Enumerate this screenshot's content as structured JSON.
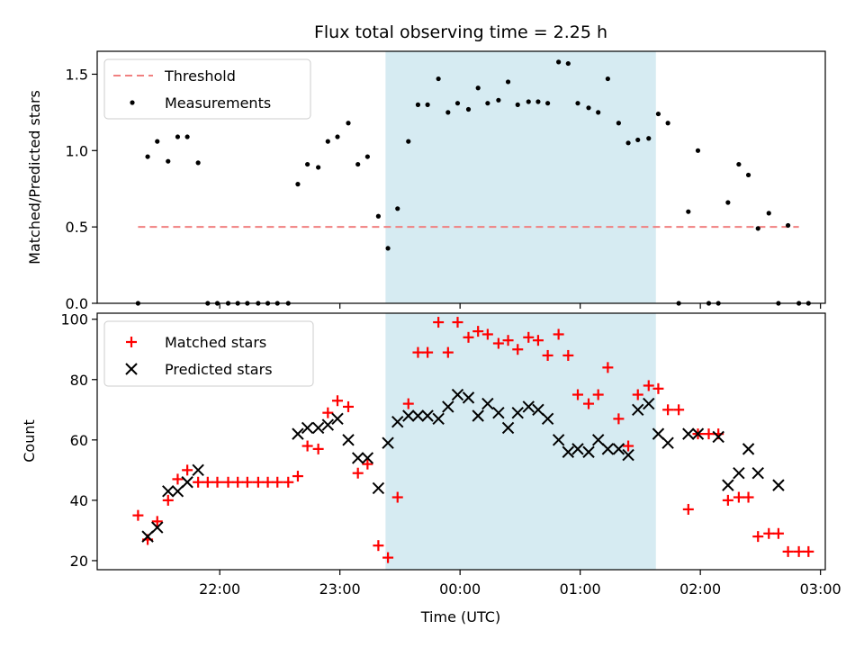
{
  "chart_data": [
    {
      "type": "scatter",
      "title": "Flux total observing time = 2.25 h",
      "xlabel": "",
      "ylabel": "Matched/Predicted stars",
      "ylim": [
        0,
        1.65
      ],
      "yticks": [
        "0.0",
        "0.5",
        "1.0",
        "1.5"
      ],
      "legend": {
        "position": "top-left",
        "entries": [
          "Threshold",
          "Measurements"
        ]
      },
      "threshold": {
        "value": 0.5,
        "x_start_h": 21.32,
        "x_end_h": 26.82,
        "color": "#f08080",
        "style": "dashed"
      },
      "shaded_region": {
        "x_start_h": 23.38,
        "x_end_h": 25.63,
        "color": "#add8e6"
      },
      "x_unit": "hours UTC (24+ = next day)",
      "series": [
        {
          "name": "Measurements",
          "color": "#000000",
          "points": [
            [
              21.32,
              0.0
            ],
            [
              21.4,
              0.96
            ],
            [
              21.48,
              1.06
            ],
            [
              21.57,
              0.93
            ],
            [
              21.65,
              1.09
            ],
            [
              21.73,
              1.09
            ],
            [
              21.82,
              0.92
            ],
            [
              21.9,
              0.0
            ],
            [
              21.98,
              0.0
            ],
            [
              22.07,
              0.0
            ],
            [
              22.15,
              0.0
            ],
            [
              22.23,
              0.0
            ],
            [
              22.32,
              0.0
            ],
            [
              22.4,
              0.0
            ],
            [
              22.48,
              0.0
            ],
            [
              22.57,
              0.0
            ],
            [
              22.65,
              0.78
            ],
            [
              22.73,
              0.91
            ],
            [
              22.82,
              0.89
            ],
            [
              22.9,
              1.06
            ],
            [
              22.98,
              1.09
            ],
            [
              23.07,
              1.18
            ],
            [
              23.15,
              0.91
            ],
            [
              23.23,
              0.96
            ],
            [
              23.32,
              0.57
            ],
            [
              23.4,
              0.36
            ],
            [
              23.48,
              0.62
            ],
            [
              23.57,
              1.06
            ],
            [
              23.65,
              1.3
            ],
            [
              23.73,
              1.3
            ],
            [
              23.82,
              1.47
            ],
            [
              23.9,
              1.25
            ],
            [
              23.98,
              1.31
            ],
            [
              24.07,
              1.27
            ],
            [
              24.15,
              1.41
            ],
            [
              24.23,
              1.31
            ],
            [
              24.32,
              1.33
            ],
            [
              24.4,
              1.45
            ],
            [
              24.48,
              1.3
            ],
            [
              24.57,
              1.32
            ],
            [
              24.65,
              1.32
            ],
            [
              24.73,
              1.31
            ],
            [
              24.82,
              1.58
            ],
            [
              24.9,
              1.57
            ],
            [
              24.98,
              1.31
            ],
            [
              25.07,
              1.28
            ],
            [
              25.15,
              1.25
            ],
            [
              25.23,
              1.47
            ],
            [
              25.32,
              1.18
            ],
            [
              25.4,
              1.05
            ],
            [
              25.48,
              1.07
            ],
            [
              25.57,
              1.08
            ],
            [
              25.65,
              1.24
            ],
            [
              25.73,
              1.18
            ],
            [
              25.82,
              0.0
            ],
            [
              25.9,
              0.6
            ],
            [
              25.98,
              1.0
            ],
            [
              26.07,
              0.0
            ],
            [
              26.15,
              0.0
            ],
            [
              26.23,
              0.66
            ],
            [
              26.32,
              0.91
            ],
            [
              26.4,
              0.84
            ],
            [
              26.48,
              0.49
            ],
            [
              26.57,
              0.59
            ],
            [
              26.65,
              0.0
            ],
            [
              26.73,
              0.51
            ],
            [
              26.82,
              0.0
            ],
            [
              26.9,
              0.0
            ]
          ]
        }
      ]
    },
    {
      "type": "scatter",
      "title": "",
      "xlabel": "Time (UTC)",
      "ylabel": "Count",
      "ylim": [
        17,
        102
      ],
      "yticks": [
        "20",
        "40",
        "60",
        "80",
        "100"
      ],
      "xticks": [
        "22:00",
        "23:00",
        "00:00",
        "01:00",
        "02:00",
        "03:00"
      ],
      "legend": {
        "position": "top-left",
        "entries": [
          "Matched stars",
          "Predicted stars"
        ]
      },
      "shaded_region": {
        "x_start_h": 23.38,
        "x_end_h": 25.63,
        "color": "#add8e6"
      },
      "series": [
        {
          "name": "Matched stars",
          "marker": "plus",
          "color": "#ff0000",
          "points": [
            [
              21.32,
              35
            ],
            [
              21.4,
              27
            ],
            [
              21.48,
              33
            ],
            [
              21.57,
              40
            ],
            [
              21.65,
              47
            ],
            [
              21.73,
              50
            ],
            [
              21.82,
              46
            ],
            [
              21.9,
              46
            ],
            [
              21.98,
              46
            ],
            [
              22.07,
              46
            ],
            [
              22.15,
              46
            ],
            [
              22.23,
              46
            ],
            [
              22.32,
              46
            ],
            [
              22.4,
              46
            ],
            [
              22.48,
              46
            ],
            [
              22.57,
              46
            ],
            [
              22.65,
              48
            ],
            [
              22.73,
              58
            ],
            [
              22.82,
              57
            ],
            [
              22.9,
              69
            ],
            [
              22.98,
              73
            ],
            [
              23.07,
              71
            ],
            [
              23.15,
              49
            ],
            [
              23.23,
              52
            ],
            [
              23.32,
              25
            ],
            [
              23.4,
              21
            ],
            [
              23.48,
              41
            ],
            [
              23.57,
              72
            ],
            [
              23.65,
              89
            ],
            [
              23.73,
              89
            ],
            [
              23.82,
              99
            ],
            [
              23.9,
              89
            ],
            [
              23.98,
              99
            ],
            [
              24.07,
              94
            ],
            [
              24.15,
              96
            ],
            [
              24.23,
              95
            ],
            [
              24.32,
              92
            ],
            [
              24.4,
              93
            ],
            [
              24.48,
              90
            ],
            [
              24.57,
              94
            ],
            [
              24.65,
              93
            ],
            [
              24.73,
              88
            ],
            [
              24.82,
              95
            ],
            [
              24.9,
              88
            ],
            [
              24.98,
              75
            ],
            [
              25.07,
              72
            ],
            [
              25.15,
              75
            ],
            [
              25.23,
              84
            ],
            [
              25.32,
              67
            ],
            [
              25.4,
              58
            ],
            [
              25.48,
              75
            ],
            [
              25.57,
              78
            ],
            [
              25.65,
              77
            ],
            [
              25.73,
              70
            ],
            [
              25.82,
              70
            ],
            [
              25.9,
              37
            ],
            [
              25.98,
              62
            ],
            [
              26.07,
              62
            ],
            [
              26.15,
              62
            ],
            [
              26.23,
              40
            ],
            [
              26.32,
              41
            ],
            [
              26.4,
              41
            ],
            [
              26.48,
              28
            ],
            [
              26.57,
              29
            ],
            [
              26.65,
              29
            ],
            [
              26.73,
              23
            ],
            [
              26.82,
              23
            ],
            [
              26.9,
              23
            ]
          ]
        },
        {
          "name": "Predicted stars",
          "marker": "x",
          "color": "#000000",
          "points": [
            [
              21.4,
              28
            ],
            [
              21.48,
              31
            ],
            [
              21.57,
              43
            ],
            [
              21.65,
              43
            ],
            [
              21.73,
              46
            ],
            [
              21.82,
              50
            ],
            [
              22.65,
              62
            ],
            [
              22.73,
              64
            ],
            [
              22.82,
              64
            ],
            [
              22.9,
              65
            ],
            [
              22.98,
              67
            ],
            [
              23.07,
              60
            ],
            [
              23.15,
              54
            ],
            [
              23.23,
              54
            ],
            [
              23.32,
              44
            ],
            [
              23.4,
              59
            ],
            [
              23.48,
              66
            ],
            [
              23.57,
              68
            ],
            [
              23.65,
              68
            ],
            [
              23.73,
              68
            ],
            [
              23.82,
              67
            ],
            [
              23.9,
              71
            ],
            [
              23.98,
              75
            ],
            [
              24.07,
              74
            ],
            [
              24.15,
              68
            ],
            [
              24.23,
              72
            ],
            [
              24.32,
              69
            ],
            [
              24.4,
              64
            ],
            [
              24.48,
              69
            ],
            [
              24.57,
              71
            ],
            [
              24.65,
              70
            ],
            [
              24.73,
              67
            ],
            [
              24.82,
              60
            ],
            [
              24.9,
              56
            ],
            [
              24.98,
              57
            ],
            [
              25.07,
              56
            ],
            [
              25.15,
              60
            ],
            [
              25.23,
              57
            ],
            [
              25.32,
              57
            ],
            [
              25.4,
              55
            ],
            [
              25.48,
              70
            ],
            [
              25.57,
              72
            ],
            [
              25.65,
              62
            ],
            [
              25.73,
              59
            ],
            [
              25.9,
              62
            ],
            [
              25.98,
              62
            ],
            [
              26.15,
              61
            ],
            [
              26.23,
              45
            ],
            [
              26.32,
              49
            ],
            [
              26.4,
              57
            ],
            [
              26.48,
              49
            ],
            [
              26.65,
              45
            ]
          ]
        }
      ]
    }
  ]
}
